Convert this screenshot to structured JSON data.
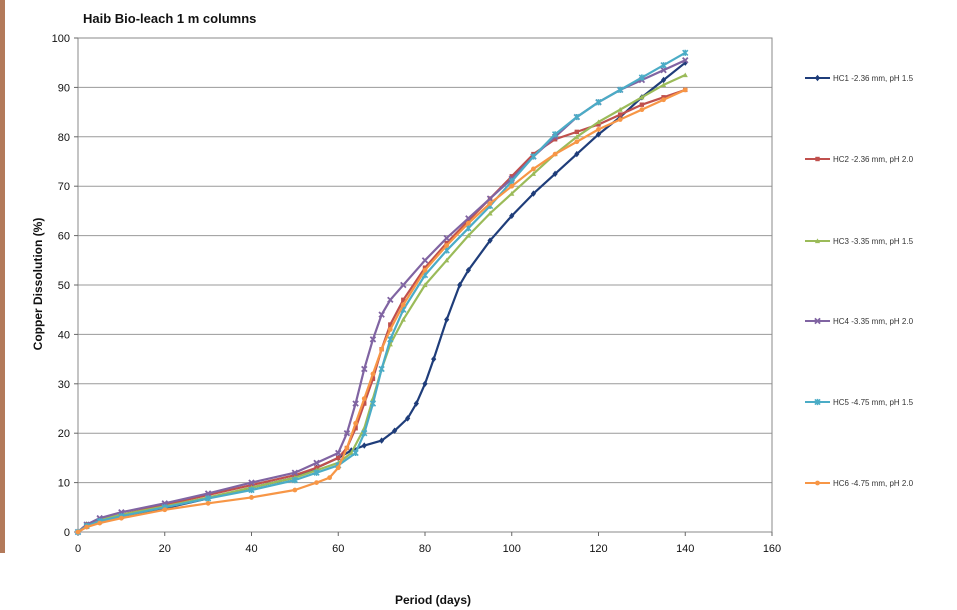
{
  "chart_data": {
    "type": "line",
    "title": "Haib Bio-leach 1 m columns",
    "xlabel": "Period (days)",
    "ylabel": "Copper Dissolution (%)",
    "xlim": [
      0,
      160
    ],
    "ylim": [
      0,
      100
    ],
    "xticks": [
      0,
      20,
      40,
      60,
      80,
      100,
      120,
      140,
      160
    ],
    "yticks": [
      0,
      10,
      20,
      30,
      40,
      50,
      60,
      70,
      80,
      90,
      100
    ],
    "grid": "horizontal",
    "legend_position": "right",
    "series": [
      {
        "name": "HC1 -2.36 mm, pH 1.5",
        "color": "#1f3d7a",
        "marker": "diamond",
        "x": [
          0,
          2,
          5,
          10,
          20,
          30,
          40,
          50,
          55,
          60,
          63,
          66,
          70,
          73,
          76,
          78,
          80,
          82,
          85,
          88,
          90,
          95,
          100,
          105,
          110,
          115,
          120,
          125,
          130,
          135,
          140
        ],
        "y": [
          0,
          1.5,
          2.2,
          3.2,
          4.8,
          6.8,
          9,
          11,
          13,
          15,
          16.5,
          17.5,
          18.5,
          20.5,
          23,
          26,
          30,
          35,
          43,
          50,
          53,
          59,
          64,
          68.5,
          72.5,
          76.5,
          80.5,
          84,
          88,
          91.5,
          95
        ]
      },
      {
        "name": "HC2 -2.36 mm, pH 2.0",
        "color": "#c0504d",
        "marker": "square",
        "x": [
          0,
          2,
          5,
          10,
          20,
          30,
          40,
          50,
          55,
          60,
          62,
          64,
          66,
          68,
          70,
          72,
          75,
          80,
          85,
          90,
          95,
          100,
          105,
          110,
          115,
          120,
          125,
          130,
          135,
          140
        ],
        "y": [
          0,
          1.5,
          2.5,
          3.5,
          5.5,
          7.5,
          9.5,
          11.5,
          13,
          15,
          17,
          21,
          26,
          31,
          37,
          42,
          47,
          53.5,
          58.5,
          63,
          67.5,
          72,
          76.5,
          79.5,
          81,
          82.5,
          84.5,
          86.5,
          88,
          89.5
        ]
      },
      {
        "name": "HC3 -3.35 mm, pH 1.5",
        "color": "#9bbb59",
        "marker": "triangle",
        "x": [
          0,
          2,
          5,
          10,
          20,
          30,
          40,
          50,
          55,
          60,
          63,
          66,
          68,
          70,
          72,
          75,
          80,
          85,
          90,
          95,
          100,
          105,
          110,
          115,
          120,
          125,
          130,
          135,
          140
        ],
        "y": [
          0,
          1.5,
          2.5,
          3.5,
          5.2,
          7,
          9,
          11,
          12.5,
          14,
          16,
          21,
          27,
          33,
          38,
          43,
          50,
          55,
          60,
          64.5,
          68.5,
          72.5,
          76.5,
          80,
          83,
          85.5,
          88,
          90.5,
          92.5
        ]
      },
      {
        "name": "HC4 -3.35 mm, pH 2.0",
        "color": "#8064a2",
        "marker": "x",
        "x": [
          0,
          2,
          5,
          10,
          20,
          30,
          40,
          50,
          55,
          60,
          62,
          64,
          66,
          68,
          70,
          72,
          75,
          80,
          85,
          90,
          95,
          100,
          105,
          110,
          115,
          120,
          125,
          130,
          135,
          140
        ],
        "y": [
          0,
          1.5,
          2.8,
          4,
          5.8,
          7.8,
          10,
          12,
          14,
          16,
          20,
          26,
          33,
          39,
          44,
          47,
          50,
          55,
          59.5,
          63.5,
          67.5,
          71.5,
          76,
          80,
          84,
          87,
          89.5,
          91.5,
          93.5,
          95.5
        ]
      },
      {
        "name": "HC5 -4.75 mm, pH 1.5",
        "color": "#4bacc6",
        "marker": "star",
        "x": [
          0,
          2,
          5,
          10,
          20,
          30,
          40,
          50,
          55,
          60,
          64,
          66,
          68,
          70,
          72,
          75,
          80,
          85,
          90,
          95,
          100,
          105,
          110,
          115,
          120,
          125,
          130,
          135,
          140
        ],
        "y": [
          0,
          1.2,
          2.2,
          3.2,
          5,
          6.8,
          8.5,
          10.5,
          12,
          13.5,
          16,
          20,
          26,
          33,
          39,
          45,
          52,
          57,
          61.5,
          66,
          71,
          76,
          80.5,
          84,
          87,
          89.5,
          92,
          94.5,
          97
        ]
      },
      {
        "name": "HC6 -4.75 mm, pH 2.0",
        "color": "#f79646",
        "marker": "circle",
        "x": [
          0,
          2,
          5,
          10,
          20,
          30,
          40,
          50,
          55,
          58,
          60,
          62,
          64,
          66,
          68,
          70,
          72,
          75,
          80,
          85,
          90,
          95,
          100,
          105,
          110,
          115,
          120,
          125,
          130,
          135,
          140
        ],
        "y": [
          0,
          1,
          1.8,
          2.8,
          4.5,
          5.8,
          7,
          8.5,
          10,
          11,
          13,
          17,
          22,
          27,
          32,
          37,
          41,
          46,
          53,
          58,
          62.5,
          66.5,
          70,
          73.5,
          76.5,
          79,
          81.5,
          83.5,
          85.5,
          87.5,
          89.5
        ]
      }
    ]
  }
}
